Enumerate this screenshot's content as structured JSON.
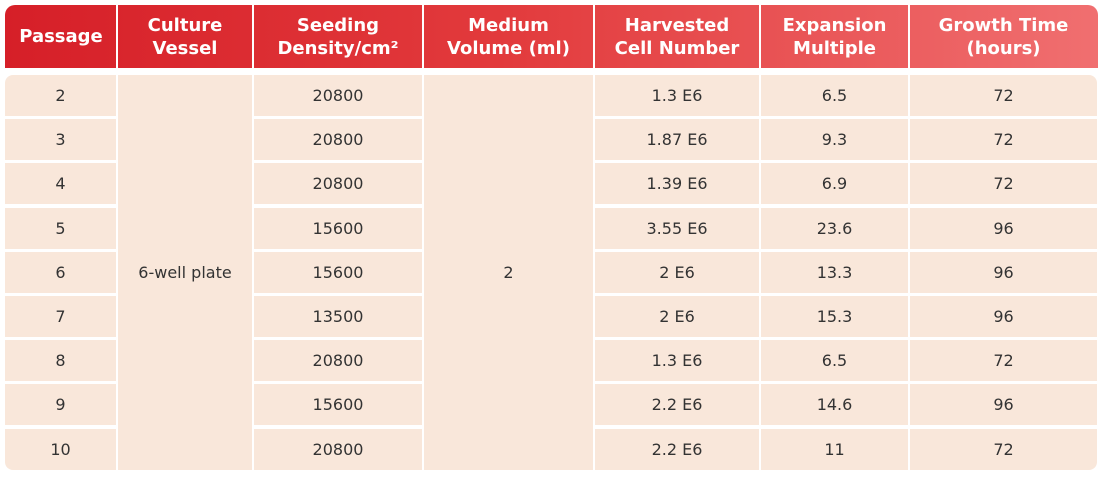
{
  "table": {
    "header": [
      [
        "Passage"
      ],
      [
        "Culture",
        "Vessel"
      ],
      [
        "Seeding",
        "Density/cm²"
      ],
      [
        "Medium",
        "Volume (ml)"
      ],
      [
        "Harvested",
        "Cell Number"
      ],
      [
        "Expansion",
        "Multiple"
      ],
      [
        "Growth Time",
        "(hours)"
      ]
    ],
    "culture_vessel": "6-well plate",
    "medium_volume": 2,
    "rows": [
      [
        2,
        20800,
        "1.3 E6",
        6.5,
        72
      ],
      [
        3,
        20800,
        "1.87 E6",
        9.3,
        72
      ],
      [
        4,
        20800,
        "1.39 E6",
        6.9,
        72
      ],
      [
        5,
        15600,
        "3.55 E6",
        23.6,
        96
      ],
      [
        6,
        15600,
        "2 E6",
        13.3,
        96
      ],
      [
        7,
        13500,
        "2 E6",
        15.3,
        96
      ],
      [
        8,
        20800,
        "1.3 E6",
        6.5,
        72
      ],
      [
        9,
        15600,
        "2.2 E6",
        14.6,
        96
      ],
      [
        10,
        20800,
        "2.2 E6",
        11,
        72
      ]
    ]
  }
}
